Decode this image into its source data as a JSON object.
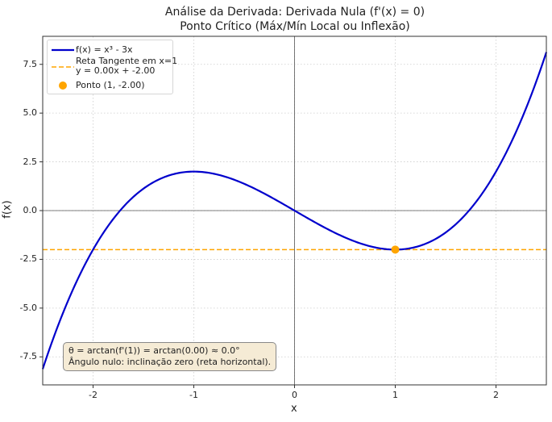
{
  "chart_data": {
    "type": "line",
    "title": "Análise da Derivada: Derivada Nula (f'(x) = 0)",
    "subtitle": "Ponto Crítico (Máx/Mín Local ou Inflexão)",
    "xlabel": "x",
    "ylabel": "f(x)",
    "xlim": [
      -2.5,
      2.5
    ],
    "ylim": [
      -8.9375,
      8.9375
    ],
    "grid": true,
    "legend_position": "upper left",
    "x_ticks": [
      -2,
      -1,
      0,
      1,
      2
    ],
    "x_tick_labels": [
      "-2",
      "-1",
      "0",
      "1",
      "2"
    ],
    "y_ticks": [
      7.5,
      5.0,
      2.5,
      0.0,
      -2.5,
      -5.0,
      -7.5
    ],
    "y_tick_labels": [
      "7.5",
      "5.0",
      "2.5",
      "0.0",
      "-2.5",
      "-5.0",
      "-7.5"
    ],
    "series": [
      {
        "name": "f(x) = x³ - 3x",
        "type": "line",
        "color": "#0000cc",
        "function": "x^3 - 3x",
        "x": [
          -2.5,
          -2.0,
          -1.5,
          -1.0,
          -0.5,
          0.0,
          0.5,
          1.0,
          1.5,
          2.0,
          2.5
        ],
        "values": [
          -8.125,
          -2.0,
          1.125,
          2.0,
          1.375,
          0.0,
          -1.375,
          -2.0,
          -1.125,
          2.0,
          8.125
        ]
      },
      {
        "name": "Reta Tangente em x=1\ny = 0.00x + -2.00",
        "type": "line",
        "style": "dashed",
        "color": "#ffa500",
        "slope": 0.0,
        "intercept": -2.0,
        "x": [
          -2.5,
          2.5
        ],
        "values": [
          -2.0,
          -2.0
        ]
      },
      {
        "name": "Ponto (1, -2.00)",
        "type": "scatter",
        "color": "#ffa500",
        "x": [
          1
        ],
        "values": [
          -2.0
        ]
      }
    ],
    "annotations": [
      "θ = arctan(f'(1)) = arctan(0.00) ≈ 0.0°",
      "Ângulo nulo: inclinação zero (reta horizontal)."
    ]
  },
  "title": {
    "line1": "Análise da Derivada: Derivada Nula (f'(x) = 0)",
    "line2": "Ponto Crítico (Máx/Mín Local ou Inflexão)"
  },
  "legend": {
    "items": [
      {
        "label": "f(x) = x³ - 3x"
      },
      {
        "label_line1": "Reta Tangente em x=1",
        "label_line2": "y = 0.00x + -2.00"
      },
      {
        "label": "Ponto (1, -2.00)"
      }
    ]
  },
  "annotation": {
    "line1": "θ = arctan(f'(1)) = arctan(0.00) ≈ 0.0°",
    "line2": "Ângulo nulo: inclinação zero (reta horizontal)."
  },
  "axes": {
    "xlabel": "x",
    "ylabel": "f(x)",
    "x_ticks": [
      "-2",
      "-1",
      "0",
      "1",
      "2"
    ],
    "y_ticks": [
      "7.5",
      "5.0",
      "2.5",
      "0.0",
      "-2.5",
      "-5.0",
      "-7.5"
    ]
  },
  "colors": {
    "curve": "#0000cc",
    "tangent": "#ffa500",
    "point": "#ffa500",
    "annotation_bg": "#f5ebd5"
  }
}
